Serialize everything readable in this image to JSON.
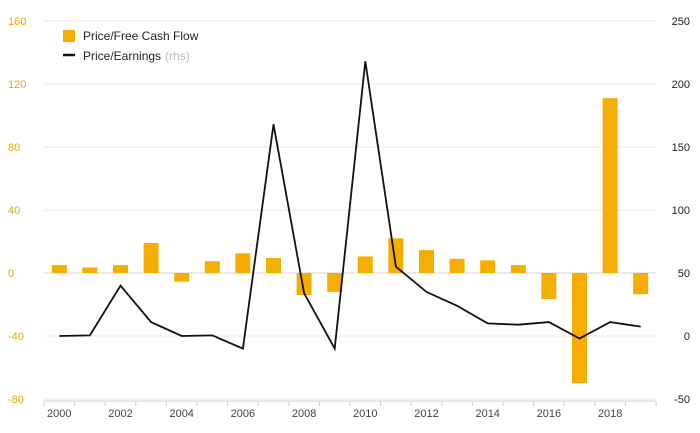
{
  "chart_data": {
    "type": "bar",
    "categories": [
      "2000",
      "2001",
      "2002",
      "2003",
      "2004",
      "2005",
      "2006",
      "2007",
      "2008",
      "2009",
      "2010",
      "2011",
      "2012",
      "2013",
      "2014",
      "2015",
      "2016",
      "2017",
      "2018",
      "2019"
    ],
    "x_tick_labels": [
      "2000",
      "2002",
      "2004",
      "2006",
      "2008",
      "2010",
      "2012",
      "2014",
      "2016",
      "2018"
    ],
    "series": [
      {
        "name": "Price/Free Cash Flow",
        "type": "bar",
        "axis": "left",
        "color": "#f5ad00",
        "values": [
          5,
          3.5,
          5,
          19,
          -5.5,
          7.5,
          12.5,
          9.5,
          -14,
          -12,
          10.5,
          22,
          14.5,
          9,
          8,
          5,
          -16.5,
          -70,
          111,
          -13.5
        ]
      },
      {
        "name": "Price/Earnings",
        "axis_note": "(rhs)",
        "type": "line",
        "axis": "right",
        "color": "#111111",
        "values": [
          0,
          0.5,
          40,
          11,
          0,
          0.5,
          -10,
          168,
          34,
          -10,
          218,
          55,
          35,
          24,
          10,
          9,
          11,
          -2,
          11,
          7.5
        ]
      }
    ],
    "left_axis": {
      "ylim": [
        -80,
        160
      ],
      "ticks": [
        -80,
        -40,
        0,
        40,
        80,
        120,
        160
      ],
      "color": "#e8a900"
    },
    "right_axis": {
      "ylim": [
        -50,
        250
      ],
      "ticks": [
        -50,
        0,
        50,
        100,
        150,
        200,
        250
      ]
    },
    "grid": true,
    "legend": "top-left"
  }
}
